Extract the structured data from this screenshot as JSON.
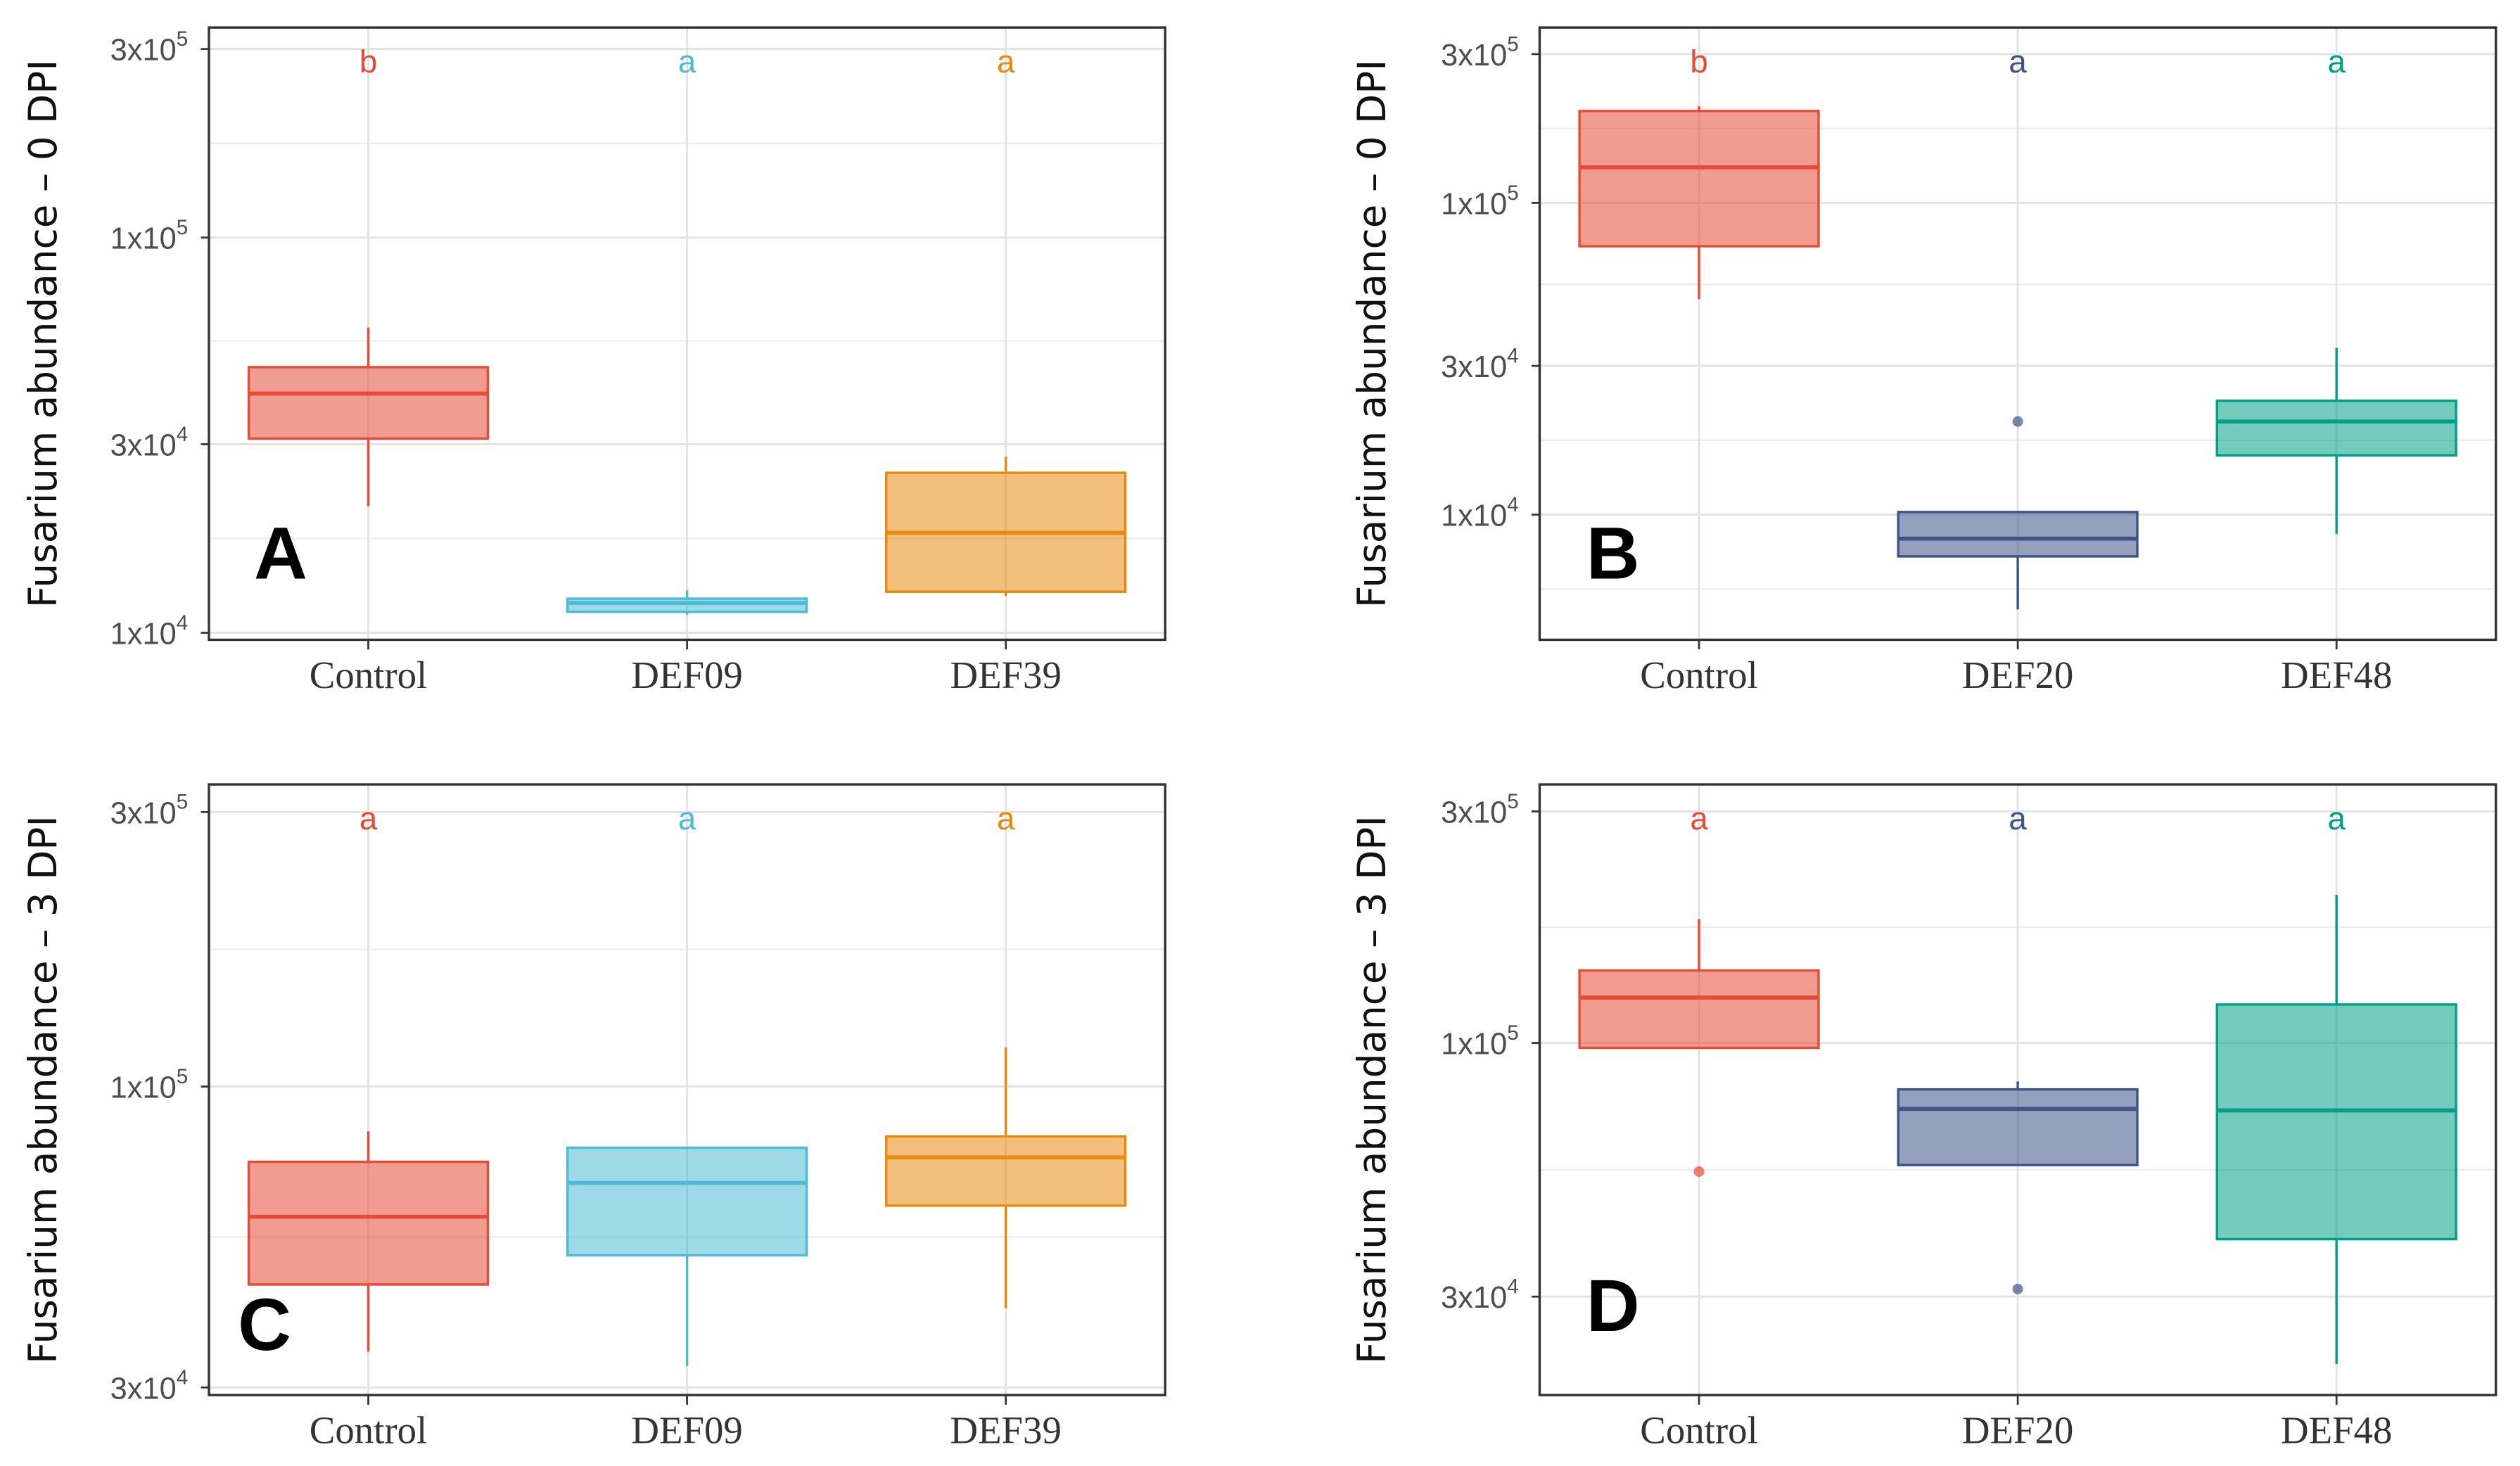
{
  "chart_data": [
    {
      "type": "box",
      "panel_label": "A",
      "ylabel": "Fusarium abundance – 0 DPI",
      "yscale": "log10",
      "ylim": [
        9600,
        340000
      ],
      "yticks": [
        {
          "value": 10000,
          "label": "1x10",
          "exp": "4"
        },
        {
          "value": 30000,
          "label": "3x10",
          "exp": "4"
        },
        {
          "value": 100000,
          "label": "1x10",
          "exp": "5"
        },
        {
          "value": 300000,
          "label": "3x10",
          "exp": "5"
        }
      ],
      "grid": true,
      "categories": [
        "Control",
        "DEF09",
        "DEF39"
      ],
      "colors": [
        "#E64B35",
        "#4DBBD5",
        "#E88A10"
      ],
      "significance": [
        "b",
        "a",
        "a"
      ],
      "boxes": [
        {
          "whisker_low": 20900,
          "q1": 31000,
          "median": 40300,
          "q3": 47000,
          "whisker_high": 59200,
          "outliers": []
        },
        {
          "whisker_low": 11100,
          "q1": 11300,
          "median": 11900,
          "q3": 12200,
          "whisker_high": 12800,
          "outliers": []
        },
        {
          "whisker_low": 12400,
          "q1": 12700,
          "median": 17900,
          "q3": 25400,
          "whisker_high": 27900,
          "outliers": []
        }
      ]
    },
    {
      "type": "box",
      "panel_label": "B",
      "ylabel": "Fusarium abundance – 0 DPI",
      "yscale": "log10",
      "ylim": [
        3970,
        365000
      ],
      "yticks": [
        {
          "value": 10000,
          "label": "1x10",
          "exp": "4"
        },
        {
          "value": 30000,
          "label": "3x10",
          "exp": "4"
        },
        {
          "value": 100000,
          "label": "1x10",
          "exp": "5"
        },
        {
          "value": 300000,
          "label": "3x10",
          "exp": "5"
        }
      ],
      "grid": true,
      "categories": [
        "Control",
        "DEF20",
        "DEF48"
      ],
      "colors": [
        "#E64B35",
        "#3C5488",
        "#00A087"
      ],
      "significance": [
        "b",
        "a",
        "a"
      ],
      "boxes": [
        {
          "whisker_low": 49100,
          "q1": 72600,
          "median": 130000,
          "q3": 197000,
          "whisker_high": 204000,
          "outliers": []
        },
        {
          "whisker_low": 4970,
          "q1": 7350,
          "median": 8380,
          "q3": 10200,
          "whisker_high": 10200,
          "outliers": [
            19900
          ]
        },
        {
          "whisker_low": 8670,
          "q1": 15500,
          "median": 19900,
          "q3": 23200,
          "whisker_high": 34300,
          "outliers": []
        }
      ]
    },
    {
      "type": "box",
      "panel_label": "C",
      "ylabel": "Fusarium abundance – 3 DPI",
      "yscale": "log10",
      "ylim": [
        29100,
        335000
      ],
      "yticks": [
        {
          "value": 30000,
          "label": "3x10",
          "exp": "4"
        },
        {
          "value": 100000,
          "label": "1x10",
          "exp": "5"
        },
        {
          "value": 300000,
          "label": "3x10",
          "exp": "5"
        }
      ],
      "grid": true,
      "categories": [
        "Control",
        "DEF09",
        "DEF39"
      ],
      "colors": [
        "#E64B35",
        "#4DBBD5",
        "#E88A10"
      ],
      "significance": [
        "a",
        "a",
        "a"
      ],
      "boxes": [
        {
          "whisker_low": 34600,
          "q1": 45300,
          "median": 59400,
          "q3": 74000,
          "whisker_high": 83600,
          "outliers": []
        },
        {
          "whisker_low": 32700,
          "q1": 50900,
          "median": 68000,
          "q3": 78300,
          "whisker_high": 78300,
          "outliers": []
        },
        {
          "whisker_low": 41200,
          "q1": 62100,
          "median": 75300,
          "q3": 81900,
          "whisker_high": 117000,
          "outliers": []
        }
      ]
    },
    {
      "type": "box",
      "panel_label": "D",
      "ylabel": "Fusarium abundance – 3 DPI",
      "yscale": "log10",
      "ylim": [
        18800,
        341000
      ],
      "yticks": [
        {
          "value": 30000,
          "label": "3x10",
          "exp": "4"
        },
        {
          "value": 100000,
          "label": "1x10",
          "exp": "5"
        },
        {
          "value": 300000,
          "label": "3x10",
          "exp": "5"
        }
      ],
      "grid": true,
      "categories": [
        "Control",
        "DEF20",
        "DEF48"
      ],
      "colors": [
        "#E64B35",
        "#3C5488",
        "#00A087"
      ],
      "significance": [
        "a",
        "a",
        "a"
      ],
      "boxes": [
        {
          "whisker_low": 97700,
          "q1": 97700,
          "median": 124000,
          "q3": 141000,
          "whisker_high": 180000,
          "outliers": [
            54300
          ]
        },
        {
          "whisker_low": 56000,
          "q1": 56000,
          "median": 73100,
          "q3": 80200,
          "whisker_high": 83300,
          "outliers": [
            31100
          ]
        },
        {
          "whisker_low": 21800,
          "q1": 39400,
          "median": 72600,
          "q3": 120000,
          "whisker_high": 202000,
          "outliers": []
        }
      ]
    }
  ]
}
